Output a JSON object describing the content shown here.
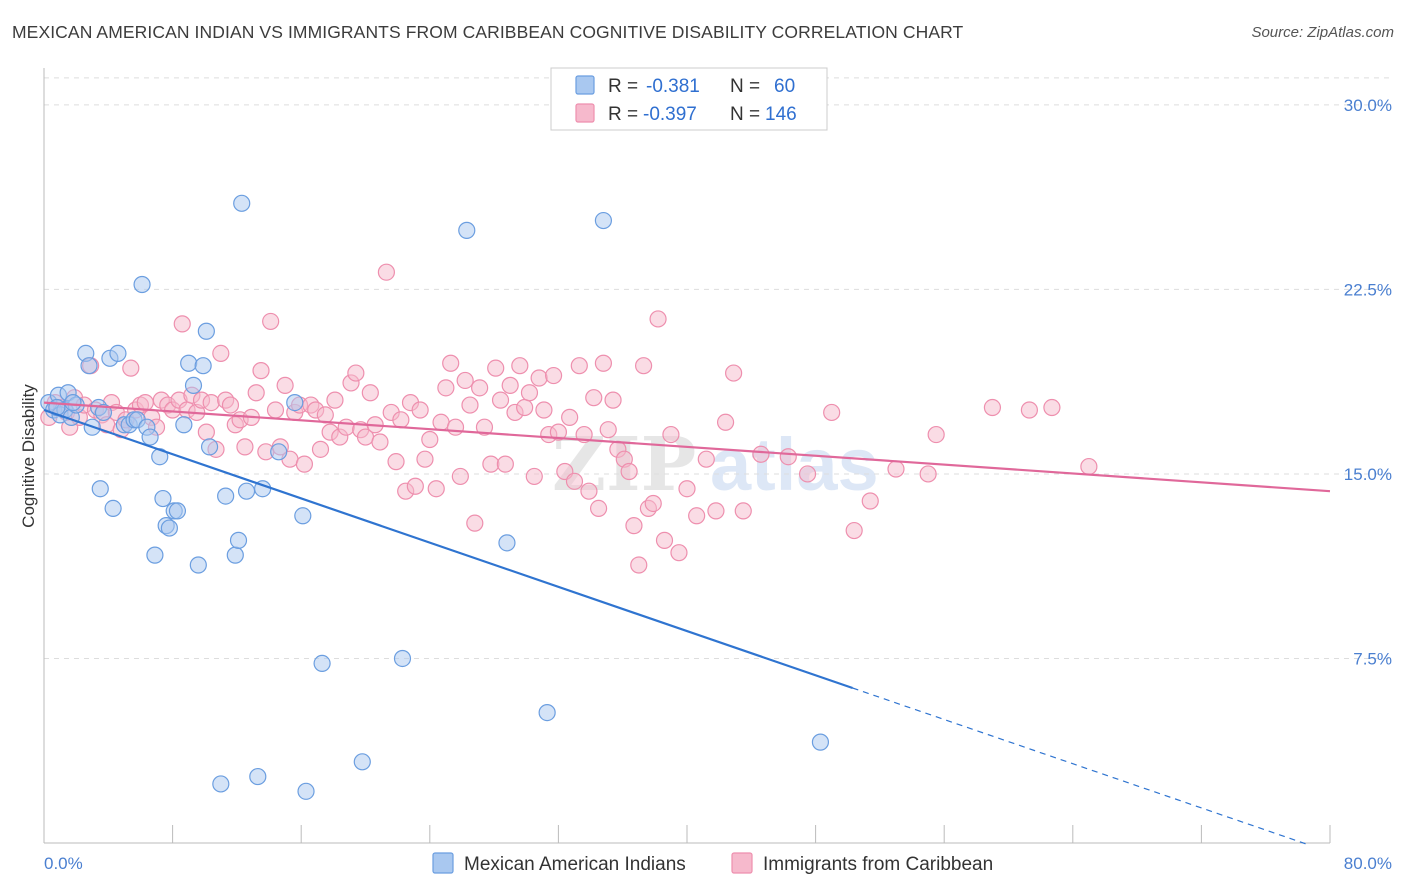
{
  "header": {
    "title": "MEXICAN AMERICAN INDIAN VS IMMIGRANTS FROM CARIBBEAN COGNITIVE DISABILITY CORRELATION CHART",
    "source": "Source: ZipAtlas.com"
  },
  "watermark": {
    "zip": "ZIP",
    "atlas": "atlas"
  },
  "colors": {
    "blue_fill": "#a9c8f0",
    "blue_stroke": "#6b9ee0",
    "blue_line": "#2f74d0",
    "pink_fill": "#f6b9cc",
    "pink_stroke": "#ee8fae",
    "pink_line": "#e0689a",
    "tick_text": "#4a7fd0",
    "grid": "#dddddd"
  },
  "legend": {
    "rows": [
      {
        "r_label": "R =",
        "r_value": "-0.381",
        "n_label": "N =",
        "n_value": "60"
      },
      {
        "r_label": "R =",
        "r_value": "-0.397",
        "n_label": "N =",
        "n_value": "146"
      }
    ]
  },
  "chart_data": {
    "type": "scatter",
    "ylabel": "Cognitive Disability",
    "xlim": [
      0,
      80
    ],
    "ylim": [
      0,
      31.5
    ],
    "x_tick_labels": [
      "0.0%",
      "80.0%"
    ],
    "y_ticks": [
      {
        "value": 7.5,
        "label": "7.5%"
      },
      {
        "value": 15.0,
        "label": "15.0%"
      },
      {
        "value": 22.5,
        "label": "22.5%"
      },
      {
        "value": 30.0,
        "label": "30.0%"
      }
    ],
    "grid": "horizontal dashed",
    "legend_placement": "top-center",
    "series": [
      {
        "name": "Mexican American Indians",
        "r": -0.381,
        "n": 60,
        "trend": {
          "x0": 0.0,
          "y0": 17.6,
          "x1": 50.3,
          "y1": 6.3,
          "dashed_to_x": 78.5
        },
        "points": [
          [
            0.3,
            17.9
          ],
          [
            0.6,
            17.6
          ],
          [
            0.9,
            18.2
          ],
          [
            1.0,
            17.4
          ],
          [
            1.3,
            17.6
          ],
          [
            1.5,
            18.3
          ],
          [
            1.7,
            17.3
          ],
          [
            2.0,
            17.8
          ],
          [
            2.6,
            19.9
          ],
          [
            2.8,
            19.4
          ],
          [
            3.0,
            16.9
          ],
          [
            3.4,
            17.7
          ],
          [
            3.7,
            17.5
          ],
          [
            3.5,
            14.4
          ],
          [
            4.1,
            19.7
          ],
          [
            4.3,
            13.6
          ],
          [
            4.6,
            19.9
          ],
          [
            5.0,
            17.0
          ],
          [
            5.3,
            17.0
          ],
          [
            5.6,
            17.2
          ],
          [
            5.8,
            17.2
          ],
          [
            6.1,
            22.7
          ],
          [
            6.4,
            16.9
          ],
          [
            6.6,
            16.5
          ],
          [
            6.9,
            11.7
          ],
          [
            7.2,
            15.7
          ],
          [
            7.4,
            14.0
          ],
          [
            7.6,
            12.9
          ],
          [
            7.8,
            12.8
          ],
          [
            8.1,
            13.5
          ],
          [
            8.3,
            13.5
          ],
          [
            8.7,
            17.0
          ],
          [
            9.0,
            19.5
          ],
          [
            9.3,
            18.6
          ],
          [
            9.6,
            11.3
          ],
          [
            9.9,
            19.4
          ],
          [
            10.1,
            20.8
          ],
          [
            10.3,
            16.1
          ],
          [
            11.3,
            14.1
          ],
          [
            11.9,
            11.7
          ],
          [
            12.1,
            12.3
          ],
          [
            12.3,
            26.0
          ],
          [
            12.6,
            14.3
          ],
          [
            13.3,
            2.7
          ],
          [
            13.6,
            14.4
          ],
          [
            14.6,
            15.9
          ],
          [
            15.6,
            17.9
          ],
          [
            16.1,
            13.3
          ],
          [
            16.3,
            2.1
          ],
          [
            17.3,
            7.3
          ],
          [
            19.8,
            3.3
          ],
          [
            22.3,
            7.5
          ],
          [
            26.3,
            24.9
          ],
          [
            28.8,
            12.2
          ],
          [
            31.3,
            5.3
          ],
          [
            34.8,
            25.3
          ],
          [
            11.0,
            2.4
          ],
          [
            48.3,
            4.1
          ],
          [
            1.8,
            17.9
          ],
          [
            0.8,
            17.7
          ]
        ]
      },
      {
        "name": "Immigrants from Caribbean",
        "r": -0.397,
        "n": 146,
        "trend": {
          "x0": 0.0,
          "y0": 17.9,
          "x1": 80.0,
          "y1": 14.3
        },
        "points": [
          [
            0.3,
            17.3
          ],
          [
            0.7,
            17.9
          ],
          [
            1.1,
            17.7
          ],
          [
            1.4,
            17.5
          ],
          [
            1.6,
            16.9
          ],
          [
            1.9,
            18.1
          ],
          [
            2.2,
            17.3
          ],
          [
            2.5,
            17.8
          ],
          [
            2.9,
            19.4
          ],
          [
            3.2,
            17.6
          ],
          [
            3.6,
            17.4
          ],
          [
            3.9,
            17.0
          ],
          [
            4.2,
            17.9
          ],
          [
            4.5,
            17.5
          ],
          [
            4.8,
            16.8
          ],
          [
            5.1,
            17.2
          ],
          [
            5.4,
            19.3
          ],
          [
            5.7,
            17.6
          ],
          [
            6.0,
            17.8
          ],
          [
            6.3,
            17.9
          ],
          [
            6.7,
            17.3
          ],
          [
            7.0,
            16.9
          ],
          [
            7.3,
            18.0
          ],
          [
            7.7,
            17.8
          ],
          [
            8.0,
            17.6
          ],
          [
            8.4,
            18.0
          ],
          [
            8.6,
            21.1
          ],
          [
            8.9,
            17.6
          ],
          [
            9.2,
            18.2
          ],
          [
            9.5,
            17.5
          ],
          [
            9.8,
            18.0
          ],
          [
            10.1,
            16.7
          ],
          [
            10.4,
            17.9
          ],
          [
            10.7,
            16.0
          ],
          [
            11.0,
            19.9
          ],
          [
            11.3,
            18.0
          ],
          [
            11.6,
            17.8
          ],
          [
            11.9,
            17.0
          ],
          [
            12.2,
            17.2
          ],
          [
            12.5,
            16.1
          ],
          [
            12.9,
            17.3
          ],
          [
            13.2,
            18.3
          ],
          [
            13.5,
            19.2
          ],
          [
            13.8,
            15.9
          ],
          [
            14.1,
            21.2
          ],
          [
            14.4,
            17.6
          ],
          [
            14.7,
            16.1
          ],
          [
            15.0,
            18.6
          ],
          [
            15.3,
            15.6
          ],
          [
            15.6,
            17.5
          ],
          [
            15.9,
            17.8
          ],
          [
            16.2,
            15.4
          ],
          [
            16.6,
            17.8
          ],
          [
            16.9,
            17.6
          ],
          [
            17.2,
            16.0
          ],
          [
            17.5,
            17.4
          ],
          [
            17.8,
            16.7
          ],
          [
            18.1,
            18.0
          ],
          [
            18.4,
            16.5
          ],
          [
            18.8,
            16.9
          ],
          [
            19.1,
            18.7
          ],
          [
            19.4,
            19.1
          ],
          [
            19.7,
            16.8
          ],
          [
            20.0,
            16.5
          ],
          [
            20.3,
            18.3
          ],
          [
            20.6,
            17.0
          ],
          [
            20.9,
            16.3
          ],
          [
            21.3,
            23.2
          ],
          [
            21.6,
            17.5
          ],
          [
            21.9,
            15.5
          ],
          [
            22.2,
            17.2
          ],
          [
            22.5,
            14.3
          ],
          [
            22.8,
            17.9
          ],
          [
            23.1,
            14.5
          ],
          [
            23.4,
            17.6
          ],
          [
            23.7,
            15.6
          ],
          [
            24.0,
            16.4
          ],
          [
            24.4,
            14.4
          ],
          [
            24.7,
            17.1
          ],
          [
            25.0,
            18.5
          ],
          [
            25.3,
            19.5
          ],
          [
            25.6,
            16.9
          ],
          [
            25.9,
            14.9
          ],
          [
            26.2,
            18.8
          ],
          [
            26.5,
            17.8
          ],
          [
            26.8,
            13.0
          ],
          [
            27.1,
            18.5
          ],
          [
            27.4,
            16.9
          ],
          [
            27.8,
            15.4
          ],
          [
            28.1,
            19.3
          ],
          [
            28.4,
            18.0
          ],
          [
            28.7,
            15.4
          ],
          [
            29.0,
            18.6
          ],
          [
            29.3,
            17.5
          ],
          [
            29.6,
            19.4
          ],
          [
            29.9,
            17.7
          ],
          [
            30.2,
            18.3
          ],
          [
            30.5,
            14.9
          ],
          [
            30.8,
            18.9
          ],
          [
            31.1,
            17.6
          ],
          [
            31.4,
            16.6
          ],
          [
            31.7,
            19.0
          ],
          [
            32.0,
            16.7
          ],
          [
            32.4,
            15.1
          ],
          [
            32.7,
            17.3
          ],
          [
            33.0,
            14.7
          ],
          [
            33.3,
            19.4
          ],
          [
            33.6,
            16.6
          ],
          [
            33.9,
            14.3
          ],
          [
            34.2,
            18.1
          ],
          [
            34.5,
            13.6
          ],
          [
            34.8,
            19.5
          ],
          [
            35.1,
            16.8
          ],
          [
            35.4,
            18.0
          ],
          [
            35.7,
            16.0
          ],
          [
            36.1,
            15.6
          ],
          [
            36.4,
            15.1
          ],
          [
            36.7,
            12.9
          ],
          [
            37.0,
            11.3
          ],
          [
            37.3,
            19.4
          ],
          [
            37.6,
            13.6
          ],
          [
            37.9,
            13.8
          ],
          [
            38.2,
            21.3
          ],
          [
            38.6,
            12.3
          ],
          [
            39.0,
            16.6
          ],
          [
            39.5,
            11.8
          ],
          [
            40.0,
            14.4
          ],
          [
            40.6,
            13.3
          ],
          [
            41.2,
            15.6
          ],
          [
            41.8,
            13.5
          ],
          [
            42.4,
            17.1
          ],
          [
            42.9,
            19.1
          ],
          [
            43.5,
            13.5
          ],
          [
            44.6,
            15.8
          ],
          [
            46.3,
            15.7
          ],
          [
            47.5,
            15.0
          ],
          [
            49.0,
            17.5
          ],
          [
            50.4,
            12.7
          ],
          [
            51.4,
            13.9
          ],
          [
            55.5,
            16.6
          ],
          [
            59.0,
            17.7
          ],
          [
            61.3,
            17.6
          ],
          [
            65.0,
            15.3
          ],
          [
            62.7,
            17.7
          ],
          [
            55.0,
            15.0
          ],
          [
            53.0,
            15.2
          ]
        ]
      }
    ]
  },
  "bottom_legend": {
    "items": [
      "Mexican American Indians",
      "Immigrants from Caribbean"
    ]
  }
}
